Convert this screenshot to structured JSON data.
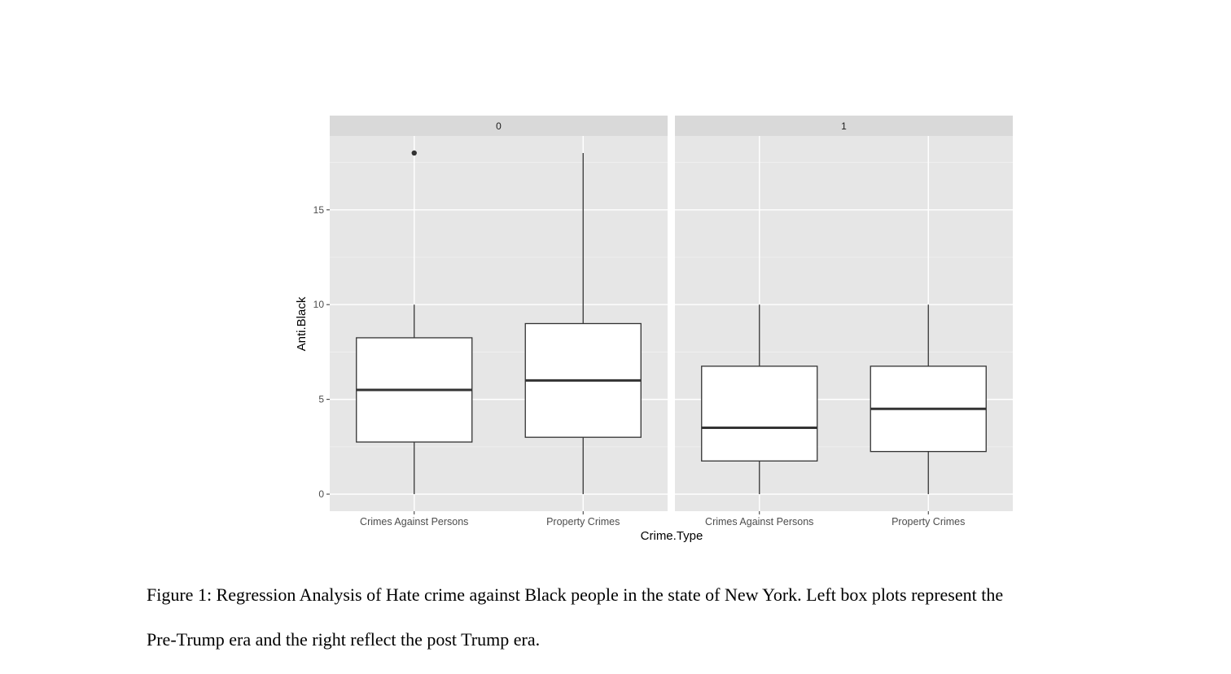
{
  "chart_data": {
    "type": "boxplot",
    "facet_variable_labels": [
      "0",
      "1"
    ],
    "categories": [
      "Crimes Against Persons",
      "Property Crimes"
    ],
    "xlabel": "Crime.Type",
    "ylabel": "Anti.Black",
    "ylim": [
      -0.9,
      18.9
    ],
    "yticks": [
      0,
      5,
      10,
      15
    ],
    "grid": true,
    "facets": [
      {
        "label": "0",
        "boxes": [
          {
            "category": "Crimes Against Persons",
            "min": 0,
            "q1": 2.75,
            "median": 5.5,
            "q3": 8.25,
            "max": 10,
            "outliers": [
              18
            ]
          },
          {
            "category": "Property Crimes",
            "min": 0,
            "q1": 3,
            "median": 6,
            "q3": 9,
            "max": 18,
            "outliers": []
          }
        ]
      },
      {
        "label": "1",
        "boxes": [
          {
            "category": "Crimes Against Persons",
            "min": 0,
            "q1": 1.75,
            "median": 3.5,
            "q3": 6.75,
            "max": 10,
            "outliers": []
          },
          {
            "category": "Property Crimes",
            "min": 0,
            "q1": 2.25,
            "median": 4.5,
            "q3": 6.75,
            "max": 10,
            "outliers": []
          }
        ]
      }
    ]
  },
  "caption": {
    "line1": "Figure 1: Regression Analysis of Hate crime against Black people in the state of New York. Left box plots represent the",
    "line2": "Pre-Trump era and the right reflect the post Trump era."
  }
}
